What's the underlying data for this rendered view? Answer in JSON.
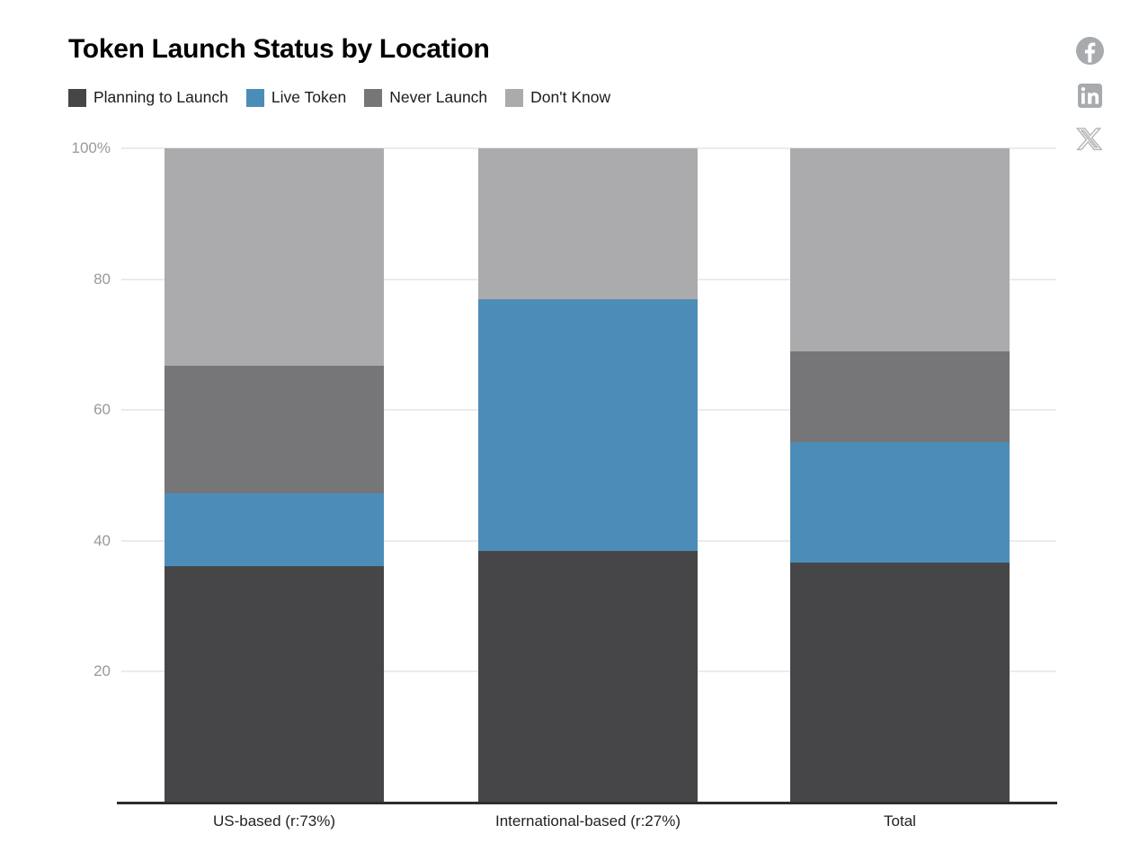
{
  "title": "Token Launch Status by Location",
  "social_icons": [
    "facebook-share-icon",
    "linkedin-share-icon",
    "x-share-icon"
  ],
  "colors": {
    "planning_to_launch": "#464648",
    "live_token": "#4c8db8",
    "never_launch": "#767679",
    "dont_know": "#ababad",
    "icon_gray": "#a8abad",
    "gridline": "#ebebec",
    "axis_line": "#2e2e30",
    "tick_text": "#98999b"
  },
  "chart_data": {
    "type": "bar",
    "subtype": "stacked-percentage-column",
    "title": "Token Launch Status by Location",
    "categories": [
      "US-based (r:73%)",
      "International-based (r:27%)",
      "Total"
    ],
    "series": [
      {
        "name": "Planning to Launch",
        "color": "#464648",
        "values": [
          36.1,
          38.5,
          36.7
        ]
      },
      {
        "name": "Live Token",
        "color": "#4c8db8",
        "values": [
          11.1,
          38.4,
          18.4
        ]
      },
      {
        "name": "Never Launch",
        "color": "#767679",
        "values": [
          19.5,
          0.0,
          13.9
        ]
      },
      {
        "name": "Don't Know",
        "color": "#ababad",
        "values": [
          33.3,
          23.1,
          31.0
        ]
      }
    ],
    "xlabel": "",
    "ylabel": "",
    "ylim": [
      0,
      100
    ],
    "yticks": [
      {
        "value": 20,
        "label": "20"
      },
      {
        "value": 40,
        "label": "40"
      },
      {
        "value": 60,
        "label": "60"
      },
      {
        "value": 80,
        "label": "80"
      },
      {
        "value": 100,
        "label": "100%"
      }
    ],
    "grid": true,
    "legend_position": "top-left"
  }
}
